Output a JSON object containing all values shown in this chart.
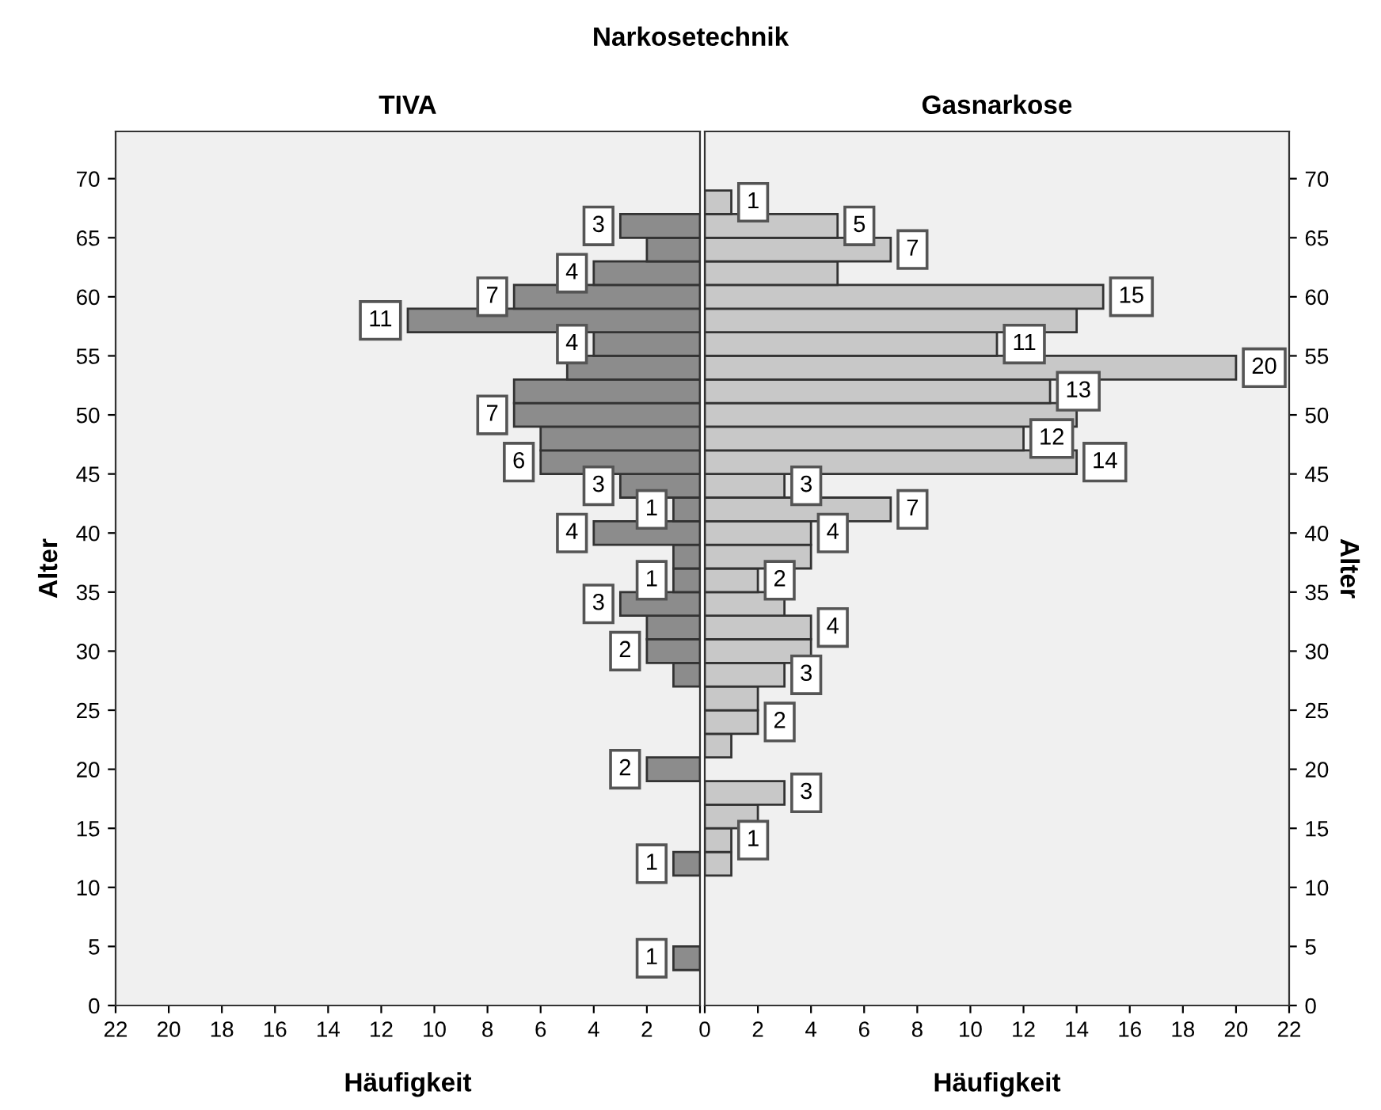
{
  "chart_data": [
    {
      "type": "histogram",
      "orientation": "horizontal",
      "title": "TIVA",
      "xlabel": "Häufigkeit",
      "ylabel": "Alter",
      "annotations": [
        "Narkosetechnik"
      ],
      "bins": [
        3,
        5,
        7,
        9,
        11,
        13,
        15,
        17,
        19,
        21,
        23,
        25,
        27,
        29,
        31,
        33,
        35,
        37,
        39,
        41,
        43,
        45,
        47,
        49,
        51,
        53,
        55,
        57,
        59,
        61,
        63,
        65,
        67,
        69
      ],
      "values": [
        1,
        0,
        0,
        0,
        1,
        0,
        0,
        0,
        2,
        0,
        0,
        0,
        1,
        2,
        2,
        3,
        1,
        1,
        4,
        1,
        3,
        6,
        6,
        7,
        7,
        5,
        4,
        11,
        7,
        4,
        2,
        3,
        0
      ],
      "value_labels": [
        "1",
        null,
        null,
        null,
        "1",
        null,
        null,
        null,
        "2",
        null,
        null,
        null,
        null,
        "2",
        null,
        "3",
        "1",
        null,
        "4",
        "1",
        "3",
        "6",
        null,
        "7",
        null,
        null,
        "4",
        "11",
        "7",
        "4",
        null,
        "3",
        null
      ],
      "color": "#8c8c8c",
      "xlim": [
        22,
        0
      ],
      "xticks": [
        22,
        20,
        18,
        16,
        14,
        12,
        10,
        8,
        6,
        4,
        2,
        {
          "value": 0,
          "label": null
        }
      ],
      "ylim": [
        0,
        74
      ],
      "yticks": [
        0,
        5,
        10,
        15,
        20,
        25,
        30,
        35,
        40,
        45,
        50,
        55,
        60,
        65,
        70
      ],
      "grid": false,
      "legend": false
    },
    {
      "type": "histogram",
      "orientation": "horizontal",
      "title": "Gasnarkose",
      "xlabel": "Häufigkeit",
      "ylabel": "Alter",
      "bins": [
        3,
        5,
        7,
        9,
        11,
        13,
        15,
        17,
        19,
        21,
        23,
        25,
        27,
        29,
        31,
        33,
        35,
        37,
        39,
        41,
        43,
        45,
        47,
        49,
        51,
        53,
        55,
        57,
        59,
        61,
        63,
        65,
        67,
        69
      ],
      "values": [
        0,
        0,
        0,
        0,
        1,
        1,
        2,
        3,
        0,
        1,
        2,
        2,
        3,
        4,
        4,
        3,
        2,
        4,
        4,
        7,
        3,
        14,
        12,
        14,
        13,
        20,
        11,
        14,
        15,
        5,
        7,
        5,
        1
      ],
      "value_labels": [
        null,
        null,
        null,
        null,
        null,
        "1",
        null,
        "3",
        null,
        null,
        "2",
        null,
        "3",
        null,
        "4",
        null,
        "2",
        null,
        "4",
        "7",
        "3",
        "14",
        "12",
        null,
        "13",
        "20",
        "11",
        null,
        "15",
        null,
        "7",
        "5",
        "1"
      ],
      "color": "#c8c8c8",
      "xlim": [
        0,
        22
      ],
      "xticks": [
        0,
        2,
        4,
        6,
        8,
        10,
        12,
        14,
        16,
        18,
        20,
        22
      ],
      "ylim": [
        0,
        74
      ],
      "yticks": [
        0,
        5,
        10,
        15,
        20,
        25,
        30,
        35,
        40,
        45,
        50,
        55,
        60,
        65,
        70
      ],
      "grid": false,
      "legend": false
    }
  ]
}
